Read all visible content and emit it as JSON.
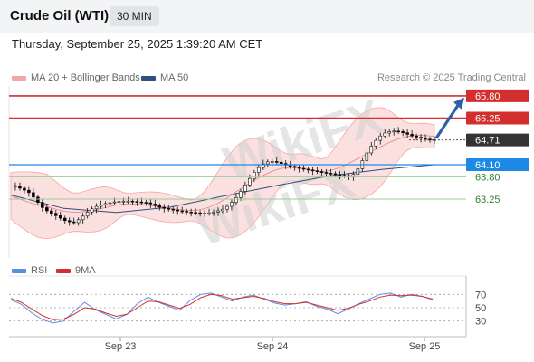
{
  "header": {
    "title": "Crude Oil (WTI)",
    "interval": "30 MIN"
  },
  "datetime": "Thursday, September 25, 2025 1:39:20 AM CET",
  "legend": {
    "bollinger_label": "MA 20 + Bollinger Bands",
    "ma50_label": "MA 50",
    "credit": "Research © 2025 Trading Central",
    "rsi_label": "RSI",
    "ma9_label": "9MA"
  },
  "colors": {
    "resistance": "#d32f2f",
    "support": "#2e7d32",
    "pivot": "#1e88e5",
    "last": "#333333",
    "arrow": "#2f5fa8",
    "bollinger": "#f4a6a6",
    "ma50": "#2f4f7f",
    "candle_up": "#ffffff",
    "candle_down": "#000000"
  },
  "chart_data": [
    {
      "type": "line",
      "subtype": "candlestick",
      "ylim": [
        62.2,
        66.2
      ],
      "x_ticks": [
        "Sep 23",
        "Sep 24",
        "Sep 25"
      ],
      "series": [
        {
          "name": "Price",
          "values": [
            63.58,
            63.56,
            63.52,
            63.47,
            63.41,
            63.3,
            63.17,
            63.04,
            62.96,
            62.9,
            62.84,
            62.78,
            62.72,
            62.69,
            62.67,
            62.74,
            62.83,
            62.93,
            63.01,
            63.07,
            63.11,
            63.14,
            63.16,
            63.18,
            63.19,
            63.2,
            63.2,
            63.19,
            63.18,
            63.17,
            63.16,
            63.13,
            63.09,
            63.05,
            63.02,
            63.0,
            62.98,
            62.96,
            62.95,
            62.93,
            62.92,
            62.91,
            62.9,
            62.9,
            62.91,
            62.93,
            62.96,
            63.0,
            63.07,
            63.17,
            63.29,
            63.44,
            63.6,
            63.76,
            63.91,
            64.03,
            64.12,
            64.17,
            64.18,
            64.16,
            64.13,
            64.09,
            64.06,
            64.03,
            64.01,
            63.99,
            63.97,
            63.95,
            63.93,
            63.91,
            63.89,
            63.88,
            63.86,
            63.84,
            63.83,
            63.8,
            63.86,
            64.0,
            64.2,
            64.39,
            64.56,
            64.7,
            64.81,
            64.88,
            64.92,
            64.93,
            64.92,
            64.89,
            64.85,
            64.81,
            64.78,
            64.75,
            64.73,
            64.72,
            64.71
          ]
        },
        {
          "name": "MA 50",
          "values": [
            63.35,
            63.02,
            62.92,
            63.05,
            63.32,
            63.58,
            63.82,
            63.98,
            64.1
          ]
        }
      ],
      "levels": [
        {
          "label": "65.80",
          "value": 65.8,
          "kind": "resistance"
        },
        {
          "label": "65.25",
          "value": 65.25,
          "kind": "resistance"
        },
        {
          "label": "64.71",
          "value": 64.71,
          "kind": "last"
        },
        {
          "label": "64.10",
          "value": 64.1,
          "kind": "pivot"
        },
        {
          "label": "63.80",
          "value": 63.8,
          "kind": "support"
        },
        {
          "label": "63.25",
          "value": 63.25,
          "kind": "support"
        }
      ]
    },
    {
      "type": "line",
      "ylim": [
        20,
        80
      ],
      "y_ticks": [
        "70",
        "50",
        "30"
      ],
      "series": [
        {
          "name": "RSI",
          "values": [
            62,
            55,
            42,
            32,
            27,
            30,
            45,
            58,
            47,
            40,
            33,
            40,
            56,
            66,
            58,
            52,
            46,
            61,
            70,
            72,
            66,
            60,
            66,
            69,
            63,
            57,
            54,
            56,
            59,
            52,
            48,
            41,
            48,
            56,
            63,
            70,
            72,
            66,
            70,
            67,
            62
          ]
        },
        {
          "name": "9MA",
          "values": [
            64,
            58,
            48,
            38,
            32,
            33,
            40,
            50,
            48,
            42,
            37,
            40,
            50,
            60,
            59,
            54,
            49,
            55,
            65,
            70,
            68,
            63,
            65,
            67,
            64,
            59,
            56,
            56,
            58,
            54,
            50,
            46,
            49,
            55,
            60,
            66,
            69,
            68,
            69,
            67,
            63
          ]
        }
      ]
    }
  ]
}
